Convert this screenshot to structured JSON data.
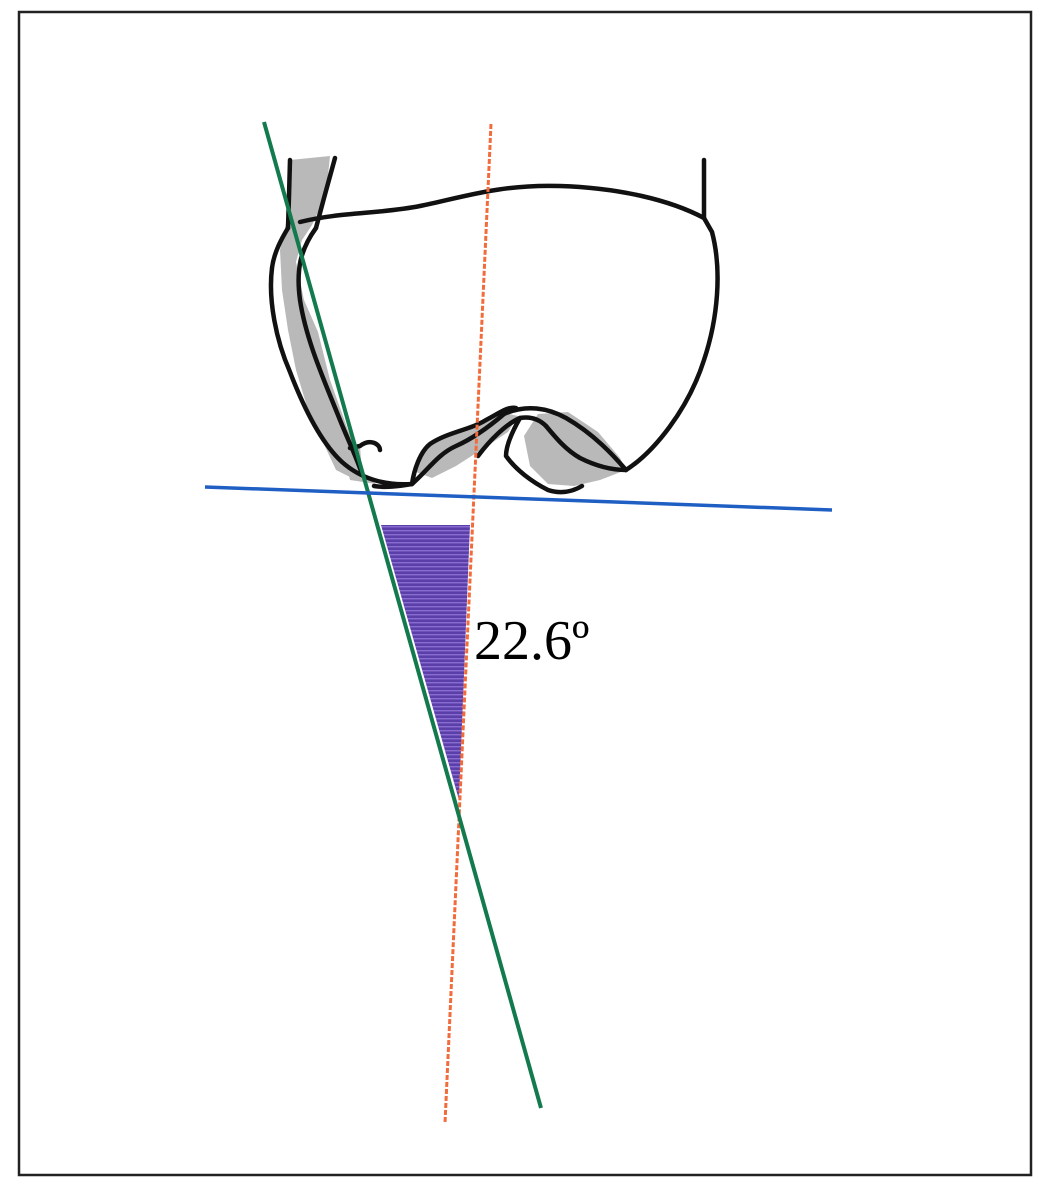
{
  "annotation": {
    "angle_label": "22.6º"
  },
  "colors": {
    "frame": "#222222",
    "outline": "#111111",
    "shading": "#b9b9b9",
    "green_line": "#137a4e",
    "orange_line": "#f26b3a",
    "blue_line": "#1f5fc4",
    "angle_fill": "#5a3fa8",
    "angle_stripe": "#9b7fe0"
  }
}
